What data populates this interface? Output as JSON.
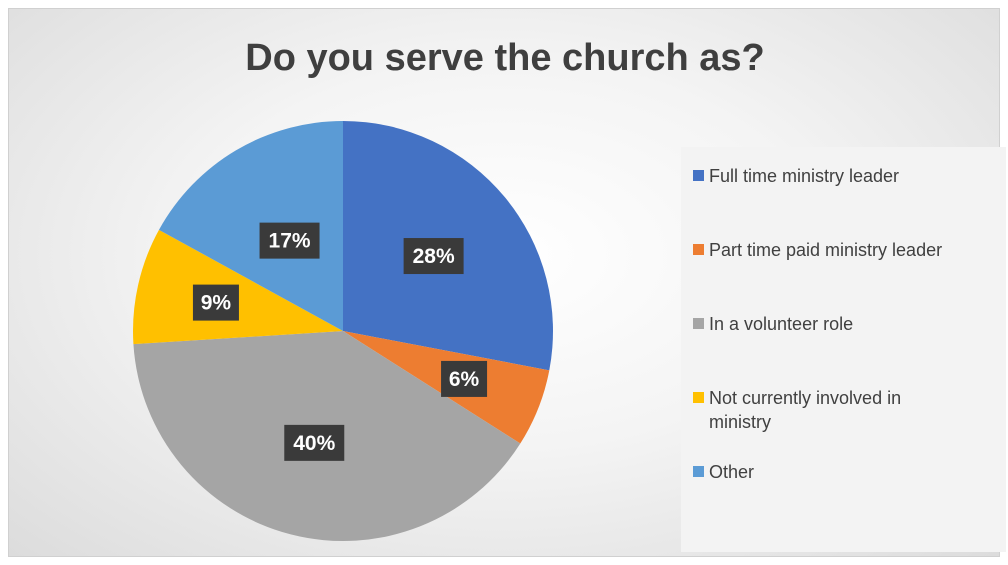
{
  "chart_data": {
    "type": "pie",
    "title": "Do you serve the church as?",
    "categories": [
      "Full time ministry leader",
      "Part time paid ministry leader",
      "In a volunteer role",
      "Not currently involved in ministry",
      "Other"
    ],
    "values": [
      28,
      6,
      40,
      9,
      17
    ],
    "data_labels": [
      "28%",
      "6%",
      "40%",
      "9%",
      "17%"
    ],
    "colors": [
      "#4472c4",
      "#ed7d31",
      "#a5a5a5",
      "#ffc000",
      "#5b9bd5"
    ],
    "legend_position": "right"
  },
  "legend": {
    "items": [
      {
        "label": "Full time ministry leader",
        "color": "#4472c4"
      },
      {
        "label": "Part time paid ministry leader",
        "color": "#ed7d31"
      },
      {
        "label": "In a volunteer role",
        "color": "#a5a5a5"
      },
      {
        "label": "Not currently involved in ministry",
        "color": "#ffc000"
      },
      {
        "label": "Other",
        "color": "#5b9bd5"
      }
    ]
  }
}
